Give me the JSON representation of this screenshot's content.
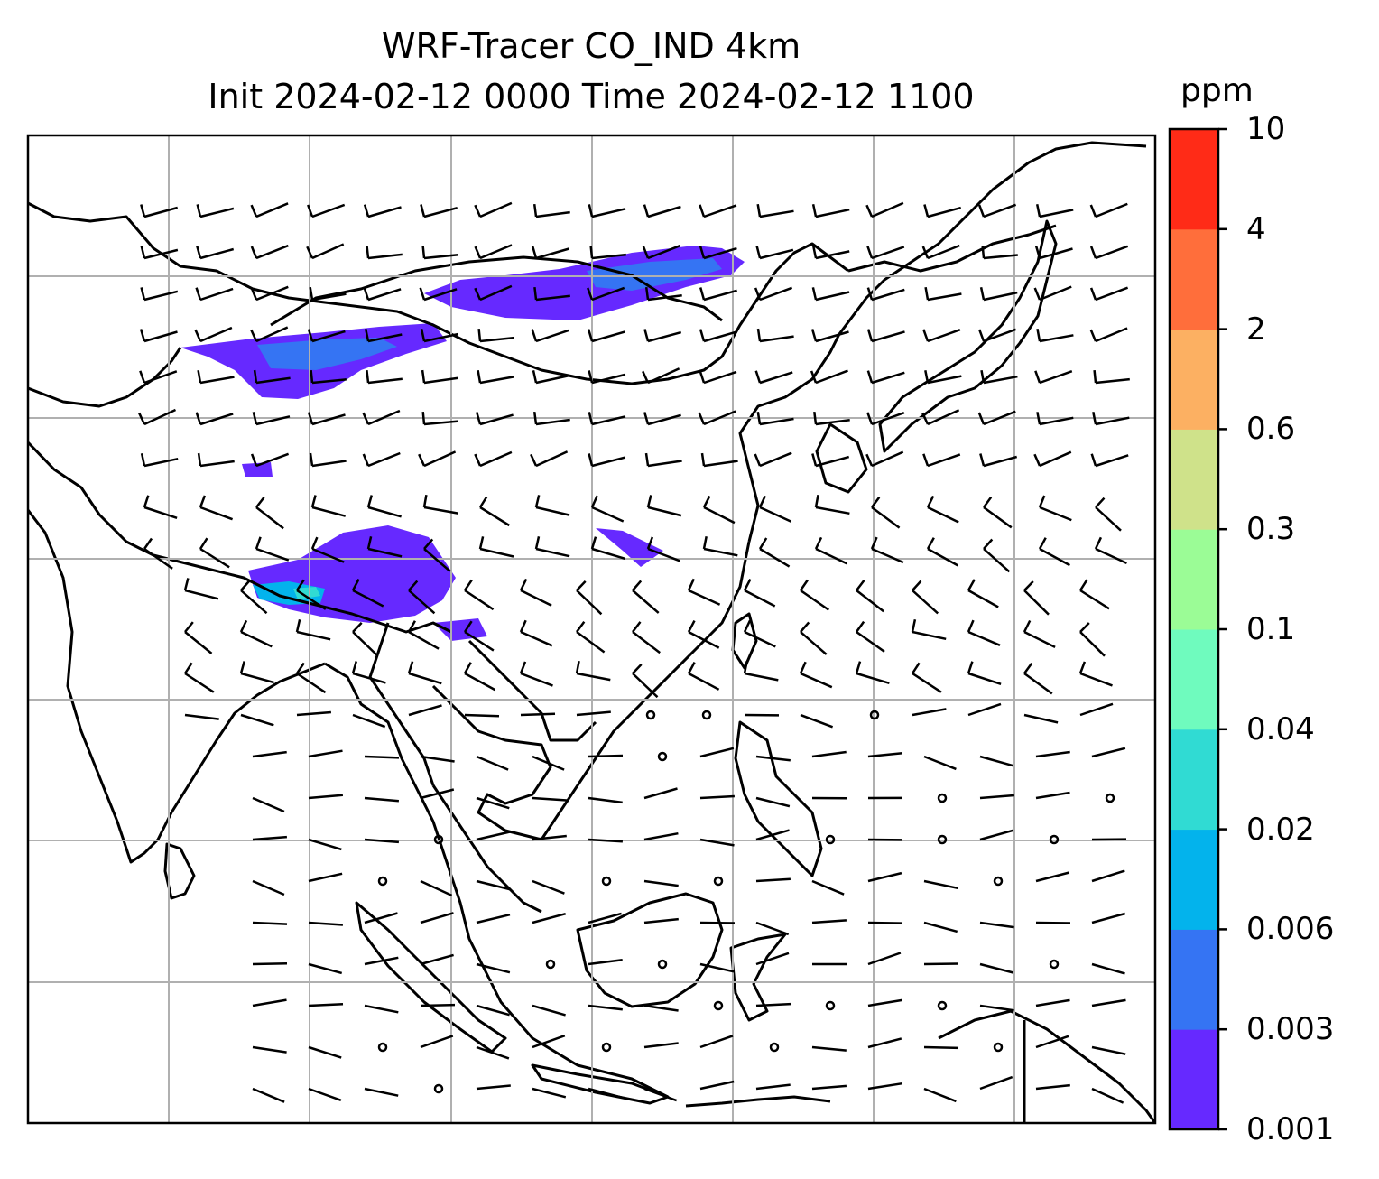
{
  "title": {
    "line1": "WRF-Tracer CO_IND 4km",
    "line2": "Init 2024-02-12 0000 Time 2024-02-12 1100"
  },
  "colorbar": {
    "unit": "ppm",
    "levels": [
      "0.001",
      "0.003",
      "0.006",
      "0.02",
      "0.04",
      "0.1",
      "0.3",
      "0.6",
      "2",
      "4",
      "10"
    ],
    "colors": [
      "#6629ff",
      "#3574f3",
      "#03b3ec",
      "#30dbd3",
      "#6ffbbe",
      "#9bfc96",
      "#cfe28a",
      "#fcb062",
      "#ff6e3b",
      "#ff2b17"
    ]
  },
  "map": {
    "features": [
      "coastlines",
      "country-borders",
      "gridlines",
      "wind-barbs",
      "tracer-concentration-fill"
    ],
    "gridline_color": "#b0b0b0"
  }
}
